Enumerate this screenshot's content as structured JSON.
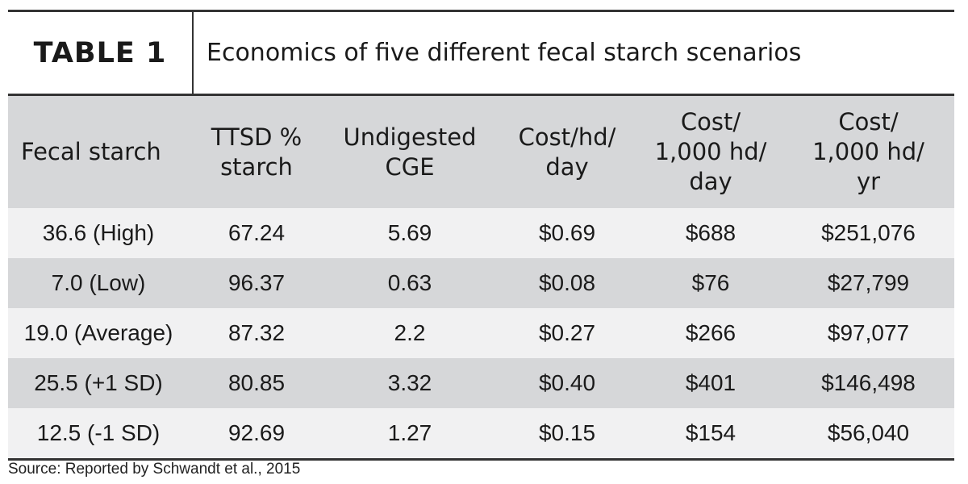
{
  "table_label": "TABLE 1",
  "table_title": "Economics of five different fecal starch scenarios",
  "columns": [
    [
      "Fecal starch"
    ],
    [
      "TTSD %",
      "starch"
    ],
    [
      "Undigested",
      "CGE"
    ],
    [
      "Cost/hd/",
      "day"
    ],
    [
      "Cost/",
      "1,000 hd/",
      "day"
    ],
    [
      "Cost/",
      "1,000 hd/",
      "yr"
    ]
  ],
  "rows": [
    [
      "36.6 (High)",
      "67.24",
      "5.69",
      "$0.69",
      "$688",
      "$251,076"
    ],
    [
      "7.0 (Low)",
      "96.37",
      "0.63",
      "$0.08",
      "$76",
      "$27,799"
    ],
    [
      "19.0 (Average)",
      "87.32",
      "2.2",
      "$0.27",
      "$266",
      "$97,077"
    ],
    [
      "25.5 (+1 SD)",
      "80.85",
      "3.32",
      "$0.40",
      "$401",
      "$146,498"
    ],
    [
      "12.5 (-1 SD)",
      "92.69",
      "1.27",
      "$0.15",
      "$154",
      "$56,040"
    ]
  ],
  "source": "Source: Reported by Schwandt et al., 2015",
  "colors": {
    "header_bg": "#d6d7d9",
    "row_light": "#f1f1f2",
    "row_dark": "#d6d7d9",
    "rule": "#333333"
  }
}
